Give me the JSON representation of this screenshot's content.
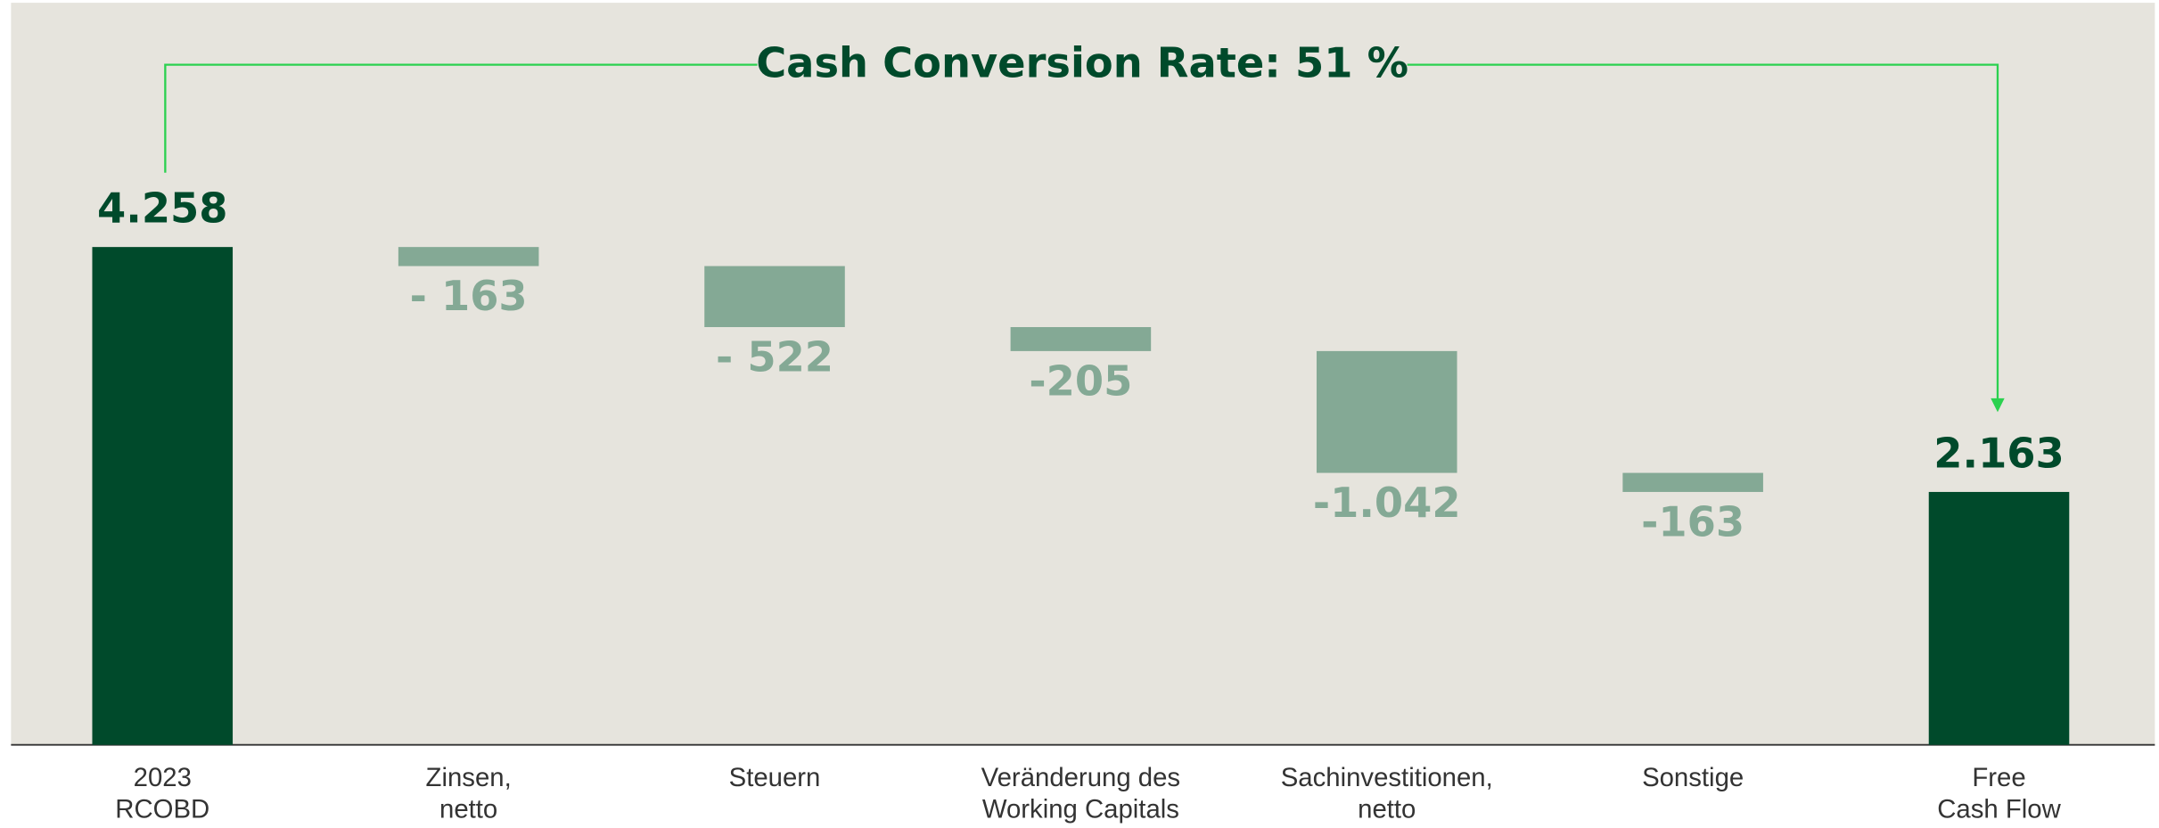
{
  "chart_data": {
    "type": "waterfall",
    "annotation": "Cash Conversion Rate: 51 %",
    "categories": [
      [
        "2023",
        "RCOBD"
      ],
      [
        "Zinsen,",
        "netto"
      ],
      [
        "Steuern"
      ],
      [
        "Veränderung des",
        "Working Capitals"
      ],
      [
        "Sachinvestitionen,",
        "netto"
      ],
      [
        "Sonstige"
      ],
      [
        "Free",
        "Cash Flow"
      ]
    ],
    "values": [
      4258,
      -163,
      -522,
      -205,
      -1042,
      -163,
      2163
    ],
    "value_labels": [
      "4.258",
      "- 163",
      "- 522",
      "-205",
      "-1.042",
      "-163",
      "2.163"
    ],
    "measure": [
      "absolute",
      "relative",
      "relative",
      "relative",
      "relative",
      "relative",
      "total"
    ],
    "colors": [
      "#004a2b",
      "#84a995",
      "#84a995",
      "#84a995",
      "#84a995",
      "#84a995",
      "#004a2b"
    ],
    "ylim": [
      0,
      6300
    ]
  }
}
